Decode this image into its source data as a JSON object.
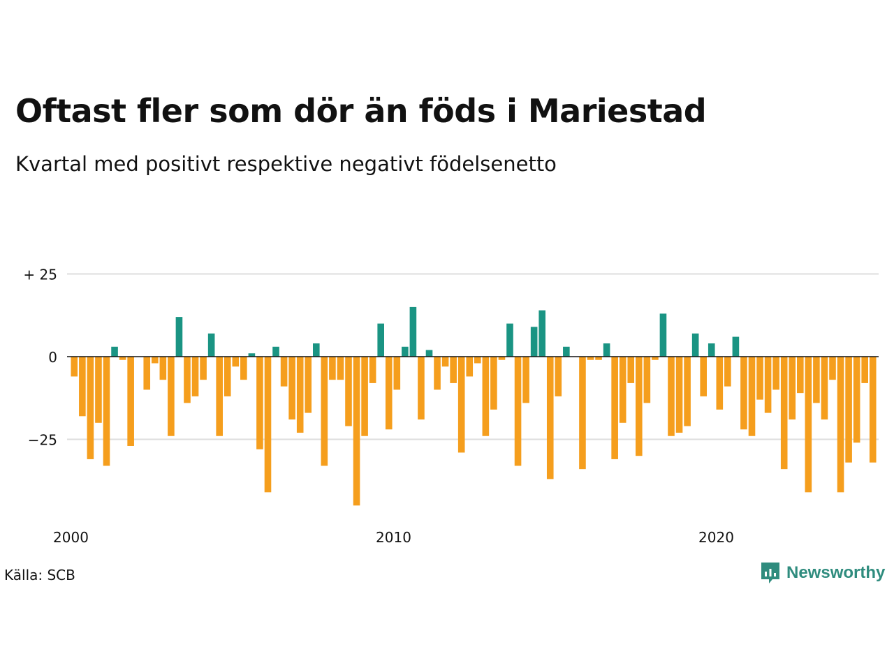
{
  "header": {
    "title": "Oftast fler som dör än föds i Mariestad",
    "subtitle": "Kvartal med positivt respektive negativt födelsenetto"
  },
  "footer": {
    "source": "Källa: SCB",
    "brand": "Newsworthy"
  },
  "colors": {
    "positive": "#1a9483",
    "negative": "#f59e1d",
    "brand": "#2f8c7e",
    "grid": "#dddddd"
  },
  "chart_data": {
    "type": "bar",
    "title": "Oftast fler som dör än föds i Mariestad",
    "subtitle": "Kvartal med positivt respektive negativt födelsenetto",
    "xlabel": "",
    "ylabel": "",
    "x_start": 2000,
    "periods_per_year": 4,
    "xticks": [
      {
        "value": 2000,
        "label": "2000"
      },
      {
        "value": 2010,
        "label": "2010"
      },
      {
        "value": 2020,
        "label": "2020"
      }
    ],
    "yticks": [
      {
        "value": 25,
        "label": "+ 25"
      },
      {
        "value": 0,
        "label": "0"
      },
      {
        "value": -25,
        "label": "−25"
      }
    ],
    "ylim": [
      -45,
      25
    ],
    "grid": true,
    "values": [
      -6,
      -18,
      -31,
      -20,
      -33,
      3,
      -1,
      -27,
      0,
      -10,
      -2,
      -7,
      -24,
      12,
      -14,
      -12,
      -7,
      7,
      -24,
      -12,
      -3,
      -7,
      1,
      -28,
      -41,
      3,
      -9,
      -19,
      -23,
      -17,
      4,
      -33,
      -7,
      -7,
      -21,
      -45,
      -24,
      -8,
      10,
      -22,
      -10,
      3,
      15,
      -19,
      2,
      -10,
      -3,
      -8,
      -29,
      -6,
      -2,
      -24,
      -16,
      -1,
      10,
      -33,
      -14,
      9,
      14,
      -37,
      -12,
      3,
      0,
      -34,
      -1,
      -1,
      4,
      -31,
      -20,
      -8,
      -30,
      -14,
      -1,
      13,
      -24,
      -23,
      -21,
      7,
      -12,
      4,
      -16,
      -9,
      6,
      -22,
      -24,
      -13,
      -17,
      -10,
      -34,
      -19,
      -11,
      -41,
      -14,
      -19,
      -7,
      -41,
      -32,
      -26,
      -8,
      -32
    ]
  }
}
